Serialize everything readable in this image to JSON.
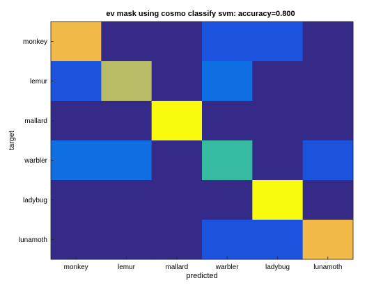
{
  "chart_data": {
    "type": "heatmap",
    "title": "ev mask using cosmo classify svm: accuracy=0.800",
    "xlabel": "predicted",
    "ylabel": "target",
    "x_categories": [
      "monkey",
      "lemur",
      "mallard",
      "warbler",
      "ladybug",
      "lunamoth"
    ],
    "y_categories": [
      "monkey",
      "lemur",
      "mallard",
      "warbler",
      "ladybug",
      "lunamoth"
    ],
    "values": [
      [
        4,
        0,
        0,
        1,
        1,
        0
      ],
      [
        1,
        3,
        0,
        1.5,
        0,
        0
      ],
      [
        0,
        0,
        5,
        0,
        0,
        0
      ],
      [
        1.5,
        1.5,
        0,
        2.5,
        0,
        1
      ],
      [
        0,
        0,
        0,
        0,
        5,
        0
      ],
      [
        0,
        0,
        0,
        1,
        1,
        4
      ]
    ],
    "color_range": [
      0,
      5
    ],
    "colormap": "parula",
    "grid": false
  }
}
